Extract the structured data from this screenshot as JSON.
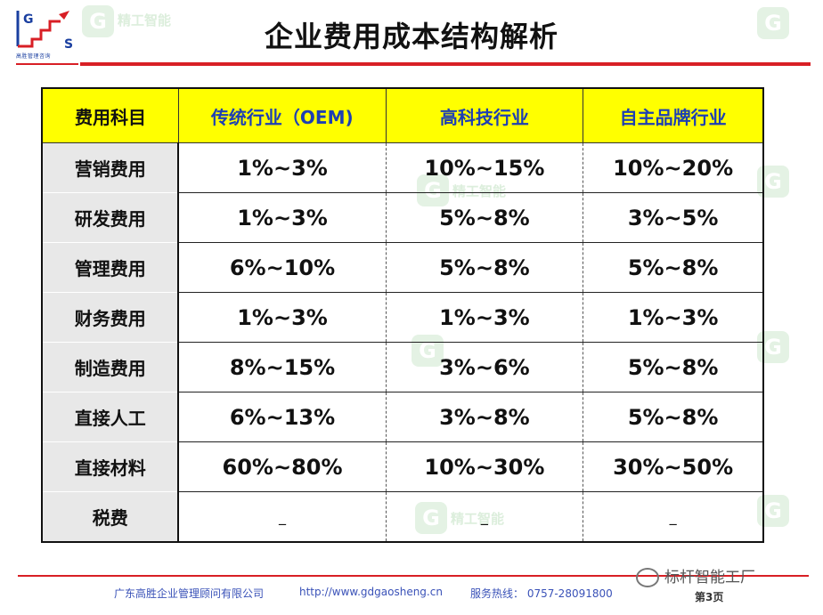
{
  "logo": {
    "letters": [
      "G",
      "S"
    ],
    "caption": "高胜管理咨询"
  },
  "title": "企业费用成本结构解析",
  "table": {
    "headers": [
      "费用科目",
      "传统行业（OEM)",
      "高科技行业",
      "自主品牌行业"
    ],
    "rows": [
      {
        "label": "营销费用",
        "values": [
          "1%~3%",
          "10%~15%",
          "10%~20%"
        ]
      },
      {
        "label": "研发费用",
        "values": [
          "1%~3%",
          "5%~8%",
          "3%~5%"
        ]
      },
      {
        "label": "管理费用",
        "values": [
          "6%~10%",
          "5%~8%",
          "5%~8%"
        ]
      },
      {
        "label": "财务费用",
        "values": [
          "1%~3%",
          "1%~3%",
          "1%~3%"
        ]
      },
      {
        "label": "制造费用",
        "values": [
          "8%~15%",
          "3%~6%",
          "5%~8%"
        ]
      },
      {
        "label": "直接人工",
        "values": [
          "6%~13%",
          "3%~8%",
          "5%~8%"
        ]
      },
      {
        "label": "直接材料",
        "values": [
          "60%~80%",
          "10%~30%",
          "30%~50%"
        ]
      },
      {
        "label": "税费",
        "values": [
          "_",
          "_",
          "_"
        ]
      }
    ]
  },
  "watermark": {
    "text": "精工智能",
    "glyph": "G"
  },
  "footer": {
    "company": "广东高胜企业管理顾问有限公司",
    "url": "http://www.gdgaosheng.cn",
    "hotline": "服务热线： 0757-28091800",
    "page": "第3页"
  },
  "brand": "标杆智能工厂",
  "colors": {
    "header_bg": "#ffff00",
    "header_text": "#1d3fb3",
    "accent_red": "#d81f25",
    "label_bg": "#e8e8e8"
  }
}
